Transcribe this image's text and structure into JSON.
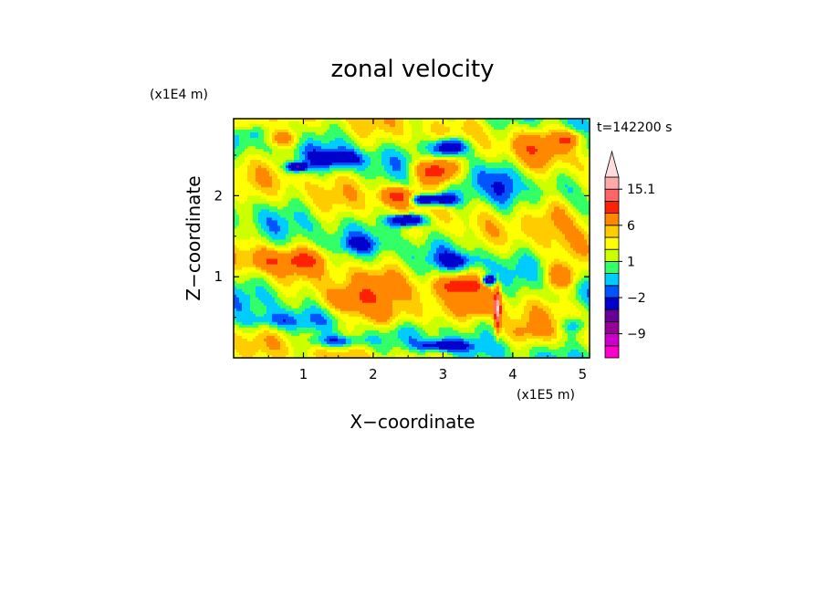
{
  "chart_data": {
    "type": "heatmap",
    "title": "zonal velocity",
    "xlabel": "X−coordinate",
    "ylabel": "Z−coordinate",
    "x_unit": "(x1E5 m)",
    "y_unit": "(x1E4 m)",
    "time_label": "t=142200 s",
    "xlim": [
      0,
      5.1
    ],
    "ylim": [
      0,
      2.95
    ],
    "x_ticks": [
      1,
      2,
      3,
      4,
      5
    ],
    "y_ticks": [
      1,
      2
    ],
    "colorbar": {
      "levels": [
        -15,
        -12,
        -9,
        -6,
        -3,
        -2,
        -1,
        0,
        1,
        2,
        3,
        6,
        9,
        12,
        15.1
      ],
      "colors": [
        "#ff00cc",
        "#cc00cc",
        "#990099",
        "#660099",
        "#0000cc",
        "#0055ff",
        "#00ccff",
        "#33ff66",
        "#ccff00",
        "#ffff00",
        "#ffcc00",
        "#ff8800",
        "#ff2200",
        "#ff6666",
        "#ffaaaa",
        "#ffdddd"
      ],
      "tick_labels": [
        "15.1",
        "6",
        "1",
        "−2",
        "−9"
      ],
      "tick_values": [
        15.1,
        6,
        1,
        -2,
        -9
      ]
    },
    "field_features": [
      {
        "x": 3.1,
        "z": 2.6,
        "value": -8,
        "sx": 0.25,
        "sz": 0.12
      },
      {
        "x": 2.9,
        "z": 2.3,
        "value": 8,
        "sx": 0.3,
        "sz": 0.15
      },
      {
        "x": 2.5,
        "z": 1.7,
        "value": -9,
        "sx": 0.25,
        "sz": 0.08
      },
      {
        "x": 2.35,
        "z": 2.0,
        "value": 6,
        "sx": 0.25,
        "sz": 0.1
      },
      {
        "x": 2.7,
        "z": 1.95,
        "value": -7,
        "sx": 0.18,
        "sz": 0.07
      },
      {
        "x": 3.0,
        "z": 1.95,
        "value": -6,
        "sx": 0.2,
        "sz": 0.08
      },
      {
        "x": 0.9,
        "z": 2.35,
        "value": -7,
        "sx": 0.15,
        "sz": 0.06
      },
      {
        "x": 0.7,
        "z": 2.7,
        "value": 4,
        "sx": 0.25,
        "sz": 0.1
      },
      {
        "x": 1.5,
        "z": 2.45,
        "value": -4,
        "sx": 0.4,
        "sz": 0.12
      },
      {
        "x": 0.5,
        "z": 1.2,
        "value": 4,
        "sx": 0.3,
        "sz": 0.15
      },
      {
        "x": 1.0,
        "z": 1.2,
        "value": 5,
        "sx": 0.25,
        "sz": 0.12
      },
      {
        "x": 1.6,
        "z": 0.7,
        "value": 4,
        "sx": 0.4,
        "sz": 0.15
      },
      {
        "x": 2.0,
        "z": 0.8,
        "value": 2,
        "sx": 0.6,
        "sz": 0.3
      },
      {
        "x": 2.2,
        "z": 0.5,
        "value": 3,
        "sx": 0.5,
        "sz": 0.15
      },
      {
        "x": 0.6,
        "z": 0.45,
        "value": -3,
        "sx": 0.5,
        "sz": 0.12
      },
      {
        "x": 1.5,
        "z": 0.2,
        "value": -4,
        "sx": 0.4,
        "sz": 0.08
      },
      {
        "x": 3.0,
        "z": 0.15,
        "value": -5,
        "sx": 0.35,
        "sz": 0.07
      },
      {
        "x": 3.3,
        "z": 0.9,
        "value": 7,
        "sx": 0.35,
        "sz": 0.12
      },
      {
        "x": 3.55,
        "z": 0.65,
        "value": 4,
        "sx": 0.25,
        "sz": 0.12
      },
      {
        "x": 3.65,
        "z": 0.95,
        "value": -9,
        "sx": 0.1,
        "sz": 0.06
      },
      {
        "x": 3.78,
        "z": 0.6,
        "value": 12,
        "sx": 0.04,
        "sz": 0.25
      },
      {
        "x": 3.2,
        "z": 1.2,
        "value": -3,
        "sx": 0.3,
        "sz": 0.1
      },
      {
        "x": 4.6,
        "z": 1.8,
        "value": 4,
        "sx": 0.3,
        "sz": 0.25
      },
      {
        "x": 4.3,
        "z": 2.6,
        "value": 3,
        "sx": 0.4,
        "sz": 0.2
      },
      {
        "x": 4.8,
        "z": 2.7,
        "value": 5,
        "sx": 0.2,
        "sz": 0.1
      },
      {
        "x": 4.7,
        "z": 1.0,
        "value": 5,
        "sx": 0.25,
        "sz": 0.15
      },
      {
        "x": 4.9,
        "z": 0.4,
        "value": -3,
        "sx": 0.2,
        "sz": 0.1
      },
      {
        "x": 4.2,
        "z": 0.3,
        "value": 2,
        "sx": 0.4,
        "sz": 0.15
      },
      {
        "x": 3.9,
        "z": 2.1,
        "value": -3,
        "sx": 0.2,
        "sz": 0.4
      },
      {
        "x": 1.8,
        "z": 1.4,
        "value": -2,
        "sx": 0.3,
        "sz": 0.1
      },
      {
        "x": 0.2,
        "z": 2.9,
        "value": 3,
        "sx": 0.3,
        "sz": 0.1
      }
    ]
  }
}
